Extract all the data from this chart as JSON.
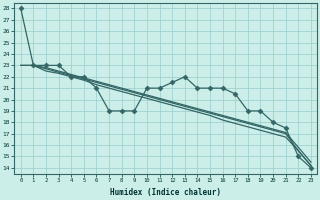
{
  "xlabel": "Humidex (Indice chaleur)",
  "ylabel": "",
  "bg_color": "#cceee8",
  "grid_color": "#99cccc",
  "line_color": "#336666",
  "xlim": [
    -0.5,
    23.5
  ],
  "ylim": [
    13.5,
    28.5
  ],
  "yticks": [
    14,
    15,
    16,
    17,
    18,
    19,
    20,
    21,
    22,
    23,
    24,
    25,
    26,
    27,
    28
  ],
  "xticks": [
    0,
    1,
    2,
    3,
    4,
    5,
    6,
    7,
    8,
    9,
    10,
    11,
    12,
    13,
    14,
    15,
    16,
    17,
    18,
    19,
    20,
    21,
    22,
    23
  ],
  "line1_x": [
    0,
    1,
    2,
    3,
    4,
    5,
    6,
    7,
    8,
    9,
    10,
    11,
    12,
    13,
    14,
    15,
    16,
    17,
    18,
    19,
    20,
    21,
    22,
    23
  ],
  "line1_y": [
    28,
    23,
    23,
    23,
    22,
    22,
    21,
    19,
    19,
    19,
    21,
    21,
    21.5,
    22,
    21,
    21,
    21,
    20.5,
    19,
    19,
    18,
    17.5,
    15,
    14
  ],
  "line2_x": [
    0,
    1,
    2,
    3,
    4,
    5,
    6,
    7,
    8,
    9,
    10,
    11,
    12,
    13,
    14,
    15,
    16,
    17,
    18,
    19,
    20,
    21,
    22,
    23
  ],
  "line2_y": [
    23,
    23,
    22.5,
    22.3,
    22.0,
    21.7,
    21.3,
    21.0,
    20.7,
    20.4,
    20.1,
    19.8,
    19.5,
    19.2,
    18.9,
    18.6,
    18.2,
    17.9,
    17.6,
    17.3,
    17.0,
    16.7,
    15.5,
    14.2
  ],
  "line3_x": [
    0,
    1,
    2,
    3,
    4,
    5,
    6,
    7,
    8,
    9,
    10,
    11,
    12,
    13,
    14,
    15,
    16,
    17,
    18,
    19,
    20,
    21,
    22,
    23
  ],
  "line3_y": [
    23,
    23,
    22.8,
    22.5,
    22.2,
    21.9,
    21.6,
    21.3,
    21.0,
    20.7,
    20.4,
    20.1,
    19.8,
    19.5,
    19.2,
    18.9,
    18.6,
    18.3,
    18.0,
    17.7,
    17.4,
    17.1,
    15.8,
    14.5
  ],
  "line4_x": [
    1,
    2,
    3,
    4,
    5,
    6,
    7,
    8,
    9,
    10,
    11,
    12,
    13,
    14,
    15,
    16,
    17,
    18,
    19,
    20,
    21,
    22,
    23
  ],
  "line4_y": [
    23,
    22.7,
    22.4,
    22.1,
    21.8,
    21.5,
    21.2,
    20.9,
    20.6,
    20.3,
    20.0,
    19.7,
    19.4,
    19.1,
    18.8,
    18.5,
    18.2,
    17.9,
    17.6,
    17.3,
    17.0,
    15.5,
    14.2
  ]
}
